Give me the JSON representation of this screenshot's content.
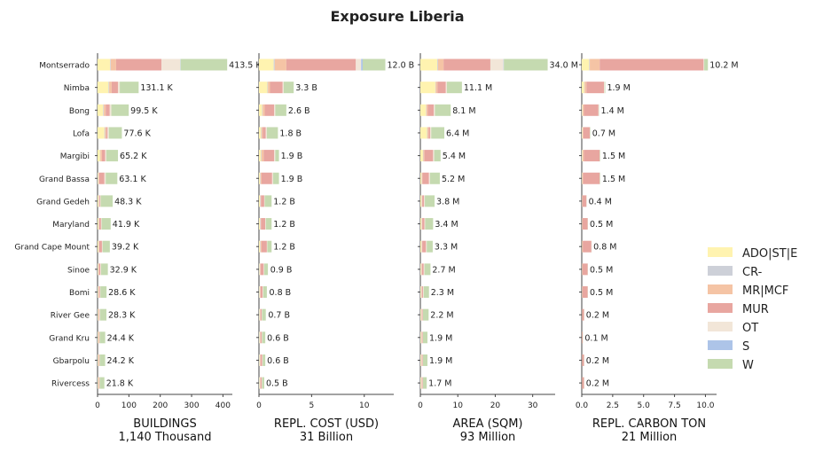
{
  "chart_data": {
    "type": "bar",
    "orientation": "horizontal",
    "stacked": true,
    "title": "Exposure Liberia",
    "categories": [
      "Montserrado",
      "Nimba",
      "Bong",
      "Lofa",
      "Margibi",
      "Grand Bassa",
      "Grand Gedeh",
      "Maryland",
      "Grand Cape Mount",
      "Sinoe",
      "Bomi",
      "River Gee",
      "Grand Kru",
      "Gbarpolu",
      "Rivercess"
    ],
    "legend": {
      "placement": "right",
      "items": [
        {
          "key": "ADO",
          "label": "ADO|ST|E",
          "color": "#fff3b0"
        },
        {
          "key": "CR",
          "label": "CR-",
          "color": "#cdd0d8"
        },
        {
          "key": "MR",
          "label": "MR|MCF",
          "color": "#f5c4a5"
        },
        {
          "key": "MUR",
          "label": "MUR",
          "color": "#e8a6a0"
        },
        {
          "key": "OT",
          "label": "OT",
          "color": "#f2e6d8"
        },
        {
          "key": "S",
          "label": "S",
          "color": "#adc4e8"
        },
        {
          "key": "W",
          "label": "W",
          "color": "#c5dab0"
        }
      ]
    },
    "panels": [
      {
        "xlabel": "BUILDINGS",
        "xsublabel": "1,140 Thousand",
        "xlim": [
          0,
          430
        ],
        "xticks": [
          0,
          100,
          200,
          300,
          400
        ],
        "totals": [
          413.5,
          131.1,
          99.5,
          77.6,
          65.2,
          63.1,
          48.3,
          41.9,
          39.2,
          32.9,
          28.6,
          28.3,
          24.4,
          24.2,
          21.8
        ],
        "total_labels": [
          "413.5 K",
          "131.1 K",
          "99.5 K",
          "77.6 K",
          "65.2 K",
          "63.1 K",
          "48.3 K",
          "41.9 K",
          "39.2 K",
          "32.9 K",
          "28.6 K",
          "28.3 K",
          "24.4 K",
          "24.2 K",
          "21.8 K"
        ],
        "series": {
          "ADO": [
            40,
            35,
            18,
            22,
            8,
            2,
            3,
            3,
            3,
            2,
            2,
            2,
            2,
            2,
            2
          ],
          "CR": [
            2,
            2,
            2,
            2,
            1,
            1,
            1,
            1,
            1,
            1,
            1,
            1,
            1,
            1,
            1
          ],
          "MR": [
            17,
            8,
            6,
            4,
            5,
            2,
            1,
            1,
            1,
            1,
            1,
            1,
            1,
            1,
            1
          ],
          "MUR": [
            145,
            20,
            13,
            4,
            10,
            17,
            3,
            6,
            9,
            5,
            3,
            2,
            2,
            2,
            2
          ],
          "OT": [
            60,
            6,
            5,
            4,
            4,
            4,
            2,
            2,
            2,
            2,
            2,
            2,
            1,
            1,
            1
          ],
          "S": [
            1,
            0,
            0,
            0,
            0,
            0,
            0,
            0,
            0,
            0,
            0,
            0,
            0,
            0,
            0
          ],
          "W": [
            148.5,
            60.1,
            55.5,
            41.6,
            37.2,
            37.1,
            38.3,
            28.9,
            23.2,
            21.9,
            19.6,
            20.3,
            17.4,
            17.2,
            14.8
          ]
        }
      },
      {
        "xlabel": "REPL. COST (USD)",
        "xsublabel": "31 Billion",
        "xlim": [
          0,
          12.8
        ],
        "xticks": [
          0,
          5,
          10
        ],
        "totals": [
          12.0,
          3.3,
          2.6,
          1.8,
          1.9,
          1.9,
          1.2,
          1.2,
          1.2,
          0.9,
          0.8,
          0.7,
          0.6,
          0.6,
          0.5
        ],
        "total_labels": [
          "12.0 B",
          "3.3 B",
          "2.6 B",
          "1.8 B",
          "1.9 B",
          "1.9 B",
          "1.2 B",
          "1.2 B",
          "1.2 B",
          "0.9 B",
          "0.8 B",
          "0.7 B",
          "0.6 B",
          "0.6 B",
          "0.5 B"
        ],
        "series": {
          "ADO": [
            1.4,
            0.8,
            0.3,
            0.2,
            0.2,
            0.1,
            0.1,
            0.1,
            0.1,
            0.05,
            0.05,
            0.05,
            0.05,
            0.05,
            0.05
          ],
          "CR": [
            0.1,
            0.05,
            0.05,
            0.05,
            0.05,
            0.05,
            0.05,
            0.05,
            0.05,
            0.05,
            0.05,
            0.05,
            0.05,
            0.05,
            0.05
          ],
          "MR": [
            1.1,
            0.2,
            0.2,
            0.1,
            0.2,
            0.1,
            0.05,
            0.05,
            0.1,
            0.05,
            0.05,
            0.05,
            0.05,
            0.05,
            0.05
          ],
          "MUR": [
            6.6,
            1.2,
            0.9,
            0.3,
            1.0,
            1.0,
            0.3,
            0.4,
            0.5,
            0.3,
            0.2,
            0.1,
            0.1,
            0.15,
            0.1
          ],
          "OT": [
            0.5,
            0.1,
            0.1,
            0.1,
            0.1,
            0.1,
            0.05,
            0.05,
            0.05,
            0.05,
            0.05,
            0.05,
            0.05,
            0.05,
            0.05
          ],
          "S": [
            0.15,
            0,
            0,
            0,
            0,
            0,
            0,
            0,
            0,
            0,
            0,
            0,
            0,
            0,
            0
          ],
          "W": [
            2.15,
            0.95,
            1.05,
            1.05,
            0.35,
            0.55,
            0.65,
            0.55,
            0.4,
            0.35,
            0.35,
            0.35,
            0.3,
            0.25,
            0.2
          ]
        }
      },
      {
        "xlabel": "AREA (SQM)",
        "xsublabel": "93 Million",
        "xlim": [
          0,
          36
        ],
        "xticks": [
          0,
          10,
          20,
          30
        ],
        "totals": [
          34.0,
          11.1,
          8.1,
          6.4,
          5.4,
          5.2,
          3.8,
          3.4,
          3.3,
          2.7,
          2.3,
          2.2,
          1.9,
          1.9,
          1.7
        ],
        "total_labels": [
          "34.0 M",
          "11.1 M",
          "8.1 M",
          "6.4 M",
          "5.4 M",
          "5.2 M",
          "3.8 M",
          "3.4 M",
          "3.3 M",
          "2.7 M",
          "2.3 M",
          "2.2 M",
          "1.9 M",
          "1.9 M",
          "1.7 M"
        ],
        "series": {
          "ADO": [
            4.5,
            4.0,
            1.5,
            1.8,
            0.7,
            0.3,
            0.3,
            0.3,
            0.3,
            0.2,
            0.2,
            0.2,
            0.2,
            0.2,
            0.2
          ],
          "CR": [
            0.2,
            0.1,
            0.1,
            0.1,
            0.1,
            0.1,
            0.1,
            0.1,
            0.1,
            0.1,
            0.1,
            0.1,
            0.1,
            0.1,
            0.1
          ],
          "MR": [
            1.5,
            0.5,
            0.4,
            0.3,
            0.3,
            0.2,
            0.1,
            0.1,
            0.1,
            0.1,
            0.1,
            0.1,
            0.1,
            0.1,
            0.1
          ],
          "MUR": [
            12.5,
            2.2,
            1.6,
            0.4,
            2.3,
            1.7,
            0.5,
            0.6,
            1.0,
            0.5,
            0.3,
            0.2,
            0.2,
            0.2,
            0.2
          ],
          "OT": [
            3.5,
            0.3,
            0.3,
            0.3,
            0.3,
            0.3,
            0.2,
            0.2,
            0.2,
            0.2,
            0.2,
            0.1,
            0.1,
            0.1,
            0.1
          ],
          "S": [
            0.1,
            0,
            0,
            0,
            0,
            0,
            0,
            0,
            0,
            0,
            0,
            0,
            0,
            0,
            0
          ],
          "W": [
            11.7,
            4.0,
            4.2,
            3.5,
            1.7,
            2.6,
            2.6,
            2.1,
            1.6,
            1.6,
            1.4,
            1.5,
            1.2,
            1.2,
            1.0
          ]
        }
      },
      {
        "xlabel": "REPL. CARBON TON",
        "xsublabel": "21 Million",
        "xlim": [
          0,
          10.9
        ],
        "xticks": [
          0.0,
          2.5,
          5.0,
          7.5,
          10.0
        ],
        "xtick_labels": [
          "0.0",
          "2.5",
          "5.0",
          "7.5",
          "10.0"
        ],
        "totals": [
          10.2,
          1.9,
          1.4,
          0.7,
          1.5,
          1.5,
          0.4,
          0.5,
          0.8,
          0.5,
          0.5,
          0.2,
          0.1,
          0.2,
          0.2
        ],
        "total_labels": [
          "10.2 M",
          "1.9 M",
          "1.4 M",
          "0.7 M",
          "1.5 M",
          "1.5 M",
          "0.4 M",
          "0.5 M",
          "0.8 M",
          "0.5 M",
          "0.5 M",
          "0.2 M",
          "0.1 M",
          "0.2 M",
          "0.2 M"
        ],
        "series": {
          "ADO": [
            0.6,
            0.2,
            0.05,
            0.05,
            0.05,
            0.03,
            0.02,
            0.02,
            0.02,
            0.02,
            0.02,
            0.01,
            0.01,
            0.01,
            0.01
          ],
          "CR": [
            0.05,
            0.03,
            0.03,
            0.02,
            0.02,
            0.02,
            0.01,
            0.01,
            0.01,
            0.01,
            0.01,
            0.01,
            0.01,
            0.01,
            0.01
          ],
          "MR": [
            0.8,
            0.15,
            0.1,
            0.05,
            0.1,
            0.05,
            0.02,
            0.02,
            0.05,
            0.02,
            0.02,
            0.01,
            0.01,
            0.01,
            0.01
          ],
          "MUR": [
            8.4,
            1.42,
            1.17,
            0.53,
            1.28,
            1.35,
            0.33,
            0.43,
            0.7,
            0.43,
            0.43,
            0.15,
            0.05,
            0.15,
            0.15
          ],
          "OT": [
            0.05,
            0.05,
            0.02,
            0.02,
            0.02,
            0.02,
            0.01,
            0.01,
            0.01,
            0.01,
            0.01,
            0.01,
            0.01,
            0.01,
            0.01
          ],
          "S": [
            0,
            0,
            0,
            0,
            0,
            0,
            0,
            0,
            0,
            0,
            0,
            0,
            0,
            0,
            0
          ],
          "W": [
            0.3,
            0.05,
            0.03,
            0.03,
            0.03,
            0.03,
            0.01,
            0.01,
            0.01,
            0.01,
            0.01,
            0.01,
            0.01,
            0.01,
            0.01
          ]
        }
      }
    ]
  }
}
